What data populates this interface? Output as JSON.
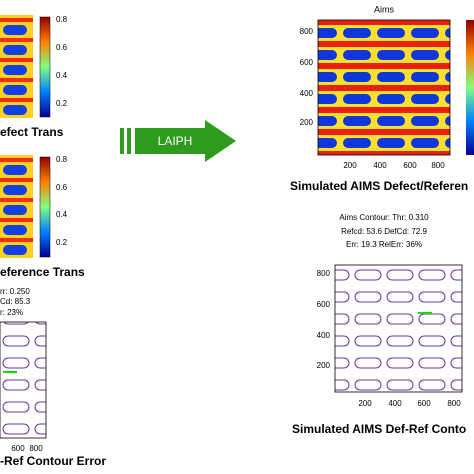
{
  "panels": [
    {
      "title": "efect Trans",
      "colorbar_ticks": [
        "0.8",
        "0.6",
        "0.4",
        "0.2"
      ]
    },
    {
      "title": "eference Trans",
      "colorbar_ticks": [
        "0.8",
        "0.6",
        "0.4",
        "0.2"
      ]
    }
  ],
  "left_contour": {
    "stats": [
      "rr: 0.250",
      "Cd:  85.3",
      "r:   23%"
    ],
    "x_ticks": [
      "600",
      "800"
    ],
    "title": "-Ref Contour Error"
  },
  "arrow": {
    "label": "LAIPH"
  },
  "aims": {
    "title": "Aims",
    "y_ticks": [
      "800",
      "600",
      "400",
      "200"
    ],
    "x_ticks": [
      "200",
      "400",
      "600",
      "800"
    ],
    "caption": "Simulated AIMS Defect/Referen"
  },
  "aims_contour": {
    "stats": [
      "Aims Contour: Thr: 0.310",
      "Refcd:  53.6 DefCd:  72.9",
      "Err:  19.3 RelErr:  36%"
    ],
    "y_ticks": [
      "800",
      "600",
      "400",
      "200"
    ],
    "x_ticks": [
      "200",
      "400",
      "600",
      "800"
    ],
    "caption": "Simulated AIMS Def-Ref Conto"
  }
}
